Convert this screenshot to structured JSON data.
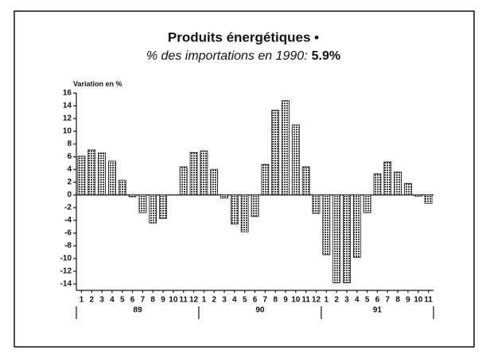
{
  "chart_data": {
    "type": "bar",
    "title": "Produits énergétiques •",
    "subtitle": "% des importations en 1990:",
    "subtitle_value": "5.9%",
    "y_label": "Variation en %",
    "categories": [
      "1",
      "2",
      "3",
      "4",
      "5",
      "6",
      "7",
      "8",
      "9",
      "10",
      "11",
      "12",
      "1",
      "2",
      "3",
      "4",
      "5",
      "6",
      "7",
      "8",
      "9",
      "10",
      "11",
      "12",
      "1",
      "2",
      "3",
      "4",
      "5",
      "6",
      "7",
      "8",
      "9",
      "10",
      "11"
    ],
    "year_labels": [
      "89",
      "90",
      "91"
    ],
    "values": [
      6.1,
      7.1,
      6.6,
      5.3,
      2.3,
      -0.3,
      -2.8,
      -4.4,
      -3.7,
      0,
      4.4,
      6.7,
      6.9,
      4.0,
      -0.5,
      -4.6,
      -5.8,
      -3.4,
      4.8,
      13.3,
      14.8,
      11.0,
      4.4,
      -2.9,
      -9.4,
      -13.8,
      -13.8,
      -9.8,
      -2.8,
      3.3,
      5.2,
      3.6,
      1.8,
      -0.2,
      -1.3
    ],
    "color": "#444444",
    "ylim": [
      -15,
      16
    ],
    "yticks": [
      -14,
      -12,
      -10,
      -8,
      -6,
      -4,
      -2,
      0,
      2,
      4,
      6,
      8,
      10,
      12,
      14,
      16
    ]
  }
}
